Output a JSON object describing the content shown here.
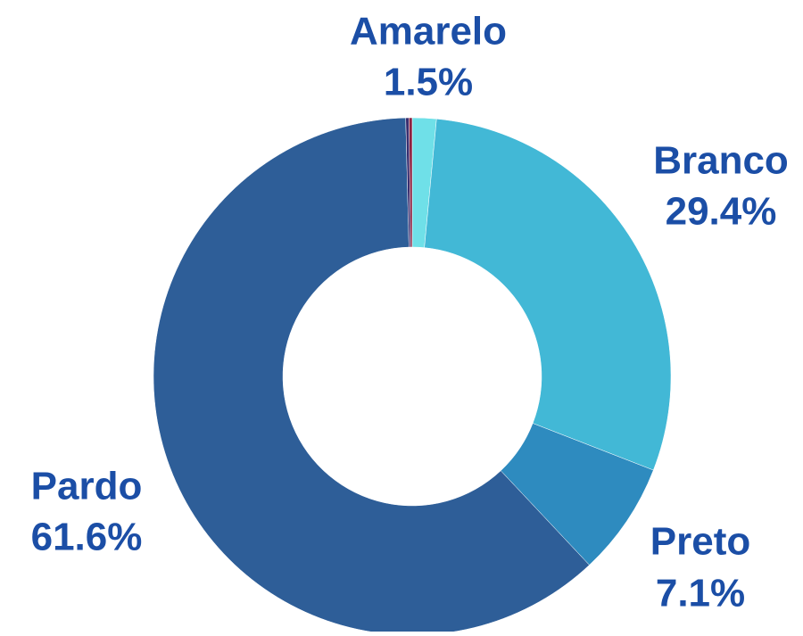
{
  "chart_data": {
    "type": "pie",
    "categories": [
      "Amarelo",
      "Branco",
      "Preto",
      "Pardo",
      null,
      null
    ],
    "values": [
      1.5,
      29.4,
      7.1,
      61.6,
      0.2,
      0.2
    ],
    "value_labels": [
      "1.5%",
      "29.4%",
      "7.1%",
      "61.6%",
      null,
      null
    ],
    "colors": [
      "#6fe0e8",
      "#42b8d6",
      "#2e8bbf",
      "#2e5e98",
      "#3a2d6e",
      "#8b2040"
    ],
    "donut": true
  }
}
